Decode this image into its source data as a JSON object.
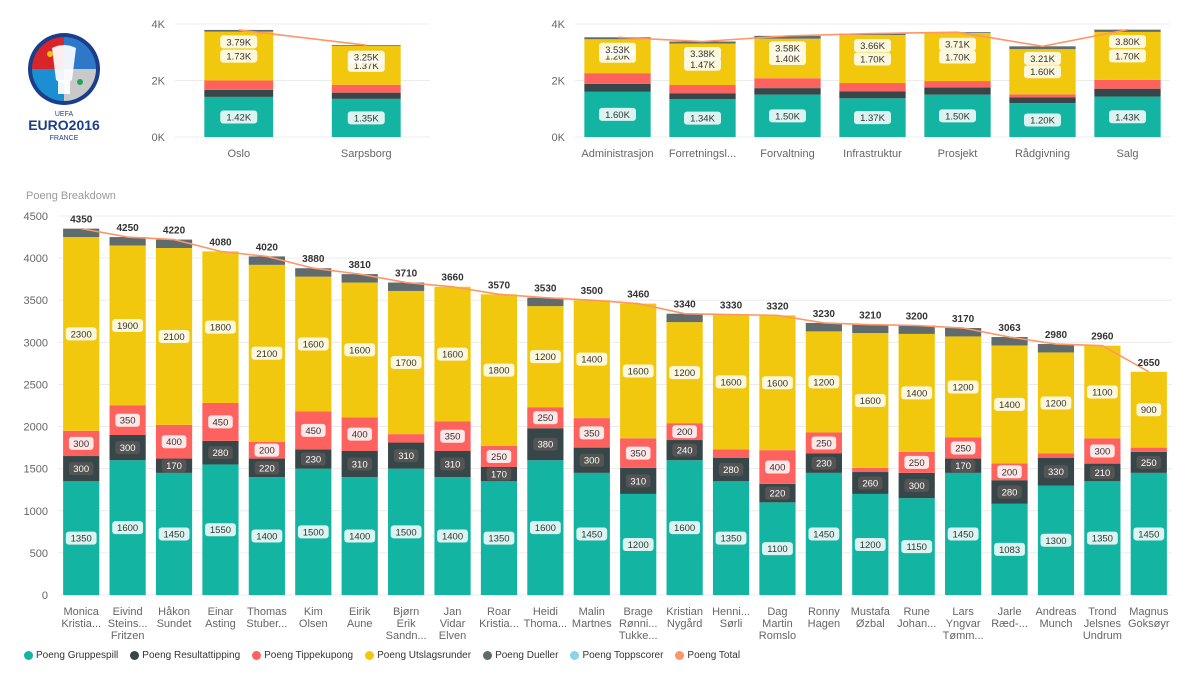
{
  "logo": {
    "text1": "UEFA",
    "text2": "EURO2016",
    "text3": "FRANCE"
  },
  "colors": {
    "Poeng Gruppespill": "#13B5A2",
    "Poeng Resultattipping": "#374649",
    "Poeng Tippekupong": "#FD625E",
    "Poeng Utslagsrunder": "#F2C80F",
    "Poeng Dueller": "#5F6B6D",
    "Poeng Toppscorer": "#8AD4EB",
    "Poeng Total": "#FE9666"
  },
  "legend": {
    "items": [
      {
        "label": "Poeng Gruppespill",
        "color": "#13B5A2"
      },
      {
        "label": "Poeng Resultattipping",
        "color": "#374649"
      },
      {
        "label": "Poeng Tippekupong",
        "color": "#FD625E"
      },
      {
        "label": "Poeng Utslagsrunder",
        "color": "#F2C80F"
      },
      {
        "label": "Poeng Dueller",
        "color": "#5F6B6D"
      },
      {
        "label": "Poeng Toppscorer",
        "color": "#8AD4EB"
      },
      {
        "label": "Poeng Total",
        "color": "#FE9666"
      }
    ]
  },
  "chart_data": [
    {
      "type": "bar",
      "stacked": true,
      "categories": [
        "Oslo",
        "Sarpsborg"
      ],
      "ylim": [
        0,
        4000
      ],
      "yticks": [
        "0K",
        "2K",
        "4K"
      ],
      "series": [
        {
          "name": "Poeng Gruppespill",
          "values": [
            1420,
            1350
          ],
          "labels": [
            "1.42K",
            "1.35K"
          ]
        },
        {
          "name": "Poeng Resultattipping",
          "values": [
            250,
            220
          ],
          "labels": [
            "",
            ""
          ]
        },
        {
          "name": "Poeng Tippekupong",
          "values": [
            330,
            280
          ],
          "labels": [
            "",
            ""
          ]
        },
        {
          "name": "Poeng Utslagsrunder",
          "values": [
            1730,
            1370
          ],
          "labels": [
            "1.73K",
            "1.37K"
          ]
        },
        {
          "name": "Poeng Dueller",
          "values": [
            60,
            30
          ],
          "labels": [
            "",
            ""
          ]
        }
      ],
      "total": {
        "name": "Poeng Total",
        "values": [
          3790,
          3250
        ],
        "labels": [
          "3.79K",
          "3.25K"
        ]
      }
    },
    {
      "type": "bar",
      "stacked": true,
      "categories": [
        "Administrasjon",
        "Forretningsl...",
        "Forvaltning",
        "Infrastruktur",
        "Prosjekt",
        "Rådgivning",
        "Salg"
      ],
      "ylim": [
        0,
        4000
      ],
      "yticks": [
        "0K",
        "2K",
        "4K"
      ],
      "series": [
        {
          "name": "Poeng Gruppespill",
          "values": [
            1600,
            1340,
            1500,
            1370,
            1500,
            1200,
            1430
          ],
          "labels": [
            "1.60K",
            "1.34K",
            "1.50K",
            "1.37K",
            "1.50K",
            "1.20K",
            "1.43K"
          ]
        },
        {
          "name": "Poeng Resultattipping",
          "values": [
            280,
            200,
            230,
            250,
            250,
            200,
            280
          ],
          "labels": [
            "",
            "",
            "",
            "",
            "",
            "",
            ""
          ]
        },
        {
          "name": "Poeng Tippekupong",
          "values": [
            380,
            300,
            350,
            290,
            230,
            110,
            310
          ],
          "labels": [
            "",
            "",
            "",
            "",
            "",
            "",
            ""
          ]
        },
        {
          "name": "Poeng Utslagsrunder",
          "values": [
            1200,
            1470,
            1400,
            1700,
            1700,
            1600,
            1700
          ],
          "labels": [
            "1.20K",
            "1.47K",
            "1.40K",
            "1.70K",
            "1.70K",
            "1.60K",
            "1.70K"
          ]
        },
        {
          "name": "Poeng Dueller",
          "values": [
            70,
            70,
            100,
            50,
            30,
            100,
            80
          ],
          "labels": [
            "",
            "",
            "",
            "",
            "",
            "",
            ""
          ]
        }
      ],
      "total": {
        "name": "Poeng Total",
        "values": [
          3530,
          3380,
          3580,
          3660,
          3710,
          3210,
          3800
        ],
        "labels": [
          "3.53K",
          "3.38K",
          "3.58K",
          "3.66K",
          "3.71K",
          "3.21K",
          "3.80K"
        ]
      }
    },
    {
      "type": "bar",
      "stacked": true,
      "subtitle": "Poeng Breakdown",
      "categories": [
        [
          "Monica",
          "Kristia..."
        ],
        [
          "Eivind",
          "Steins...",
          "Fritzen"
        ],
        [
          "Håkon",
          "Sundet"
        ],
        [
          "Einar",
          "Asting"
        ],
        [
          "Thomas",
          "Stuber..."
        ],
        [
          "Kim",
          "Olsen"
        ],
        [
          "Eirik",
          "Aune"
        ],
        [
          "Bjørn",
          "Erik",
          "Sandn..."
        ],
        [
          "Jan",
          "Vidar",
          "Elven"
        ],
        [
          "Roar",
          "Kristia..."
        ],
        [
          "Heidi",
          "Thoma..."
        ],
        [
          "Malin",
          "Martnes"
        ],
        [
          "Brage",
          "Rønni...",
          "Tukke..."
        ],
        [
          "Kristian",
          "Nygård"
        ],
        [
          "Henni...",
          "Sørli"
        ],
        [
          "Dag",
          "Martin",
          "Romslo"
        ],
        [
          "Ronny",
          "Hagen"
        ],
        [
          "Mustafa",
          "Øzbal"
        ],
        [
          "Rune",
          "Johan..."
        ],
        [
          "Lars",
          "Yngvar",
          "Tømm..."
        ],
        [
          "Jarle",
          "Ræd-..."
        ],
        [
          "Andreas",
          "Munch"
        ],
        [
          "Trond",
          "Jelsnes",
          "Undrum"
        ],
        [
          "Magnus",
          "Goksøyr"
        ]
      ],
      "ylim": [
        0,
        4500
      ],
      "yticks": [
        "0",
        "500",
        "1000",
        "1500",
        "2000",
        "2500",
        "3000",
        "3500",
        "4000",
        "4500"
      ],
      "series": [
        {
          "name": "Poeng Gruppespill",
          "values": [
            1350,
            1600,
            1450,
            1550,
            1400,
            1500,
            1400,
            1500,
            1400,
            1350,
            1600,
            1450,
            1200,
            1600,
            1350,
            1100,
            1450,
            1200,
            1150,
            1450,
            1083,
            1300,
            1350,
            1450
          ],
          "labels": [
            "1350",
            "1600",
            "1450",
            "1550",
            "1400",
            "1500",
            "1400",
            "1500",
            "1400",
            "1350",
            "1600",
            "1450",
            "1200",
            "1600",
            "1350",
            "1100",
            "1450",
            "1200",
            "1150",
            "1450",
            "1083",
            "1300",
            "1350",
            "1450"
          ]
        },
        {
          "name": "Poeng Resultattipping",
          "values": [
            300,
            300,
            170,
            280,
            220,
            230,
            310,
            310,
            310,
            170,
            380,
            300,
            310,
            240,
            280,
            220,
            230,
            260,
            300,
            170,
            280,
            330,
            210,
            250
          ],
          "labels": [
            "300",
            "300",
            "170",
            "280",
            "220",
            "230",
            "310",
            "310",
            "310",
            "170",
            "380",
            "300",
            "310",
            "240",
            "280",
            "220",
            "230",
            "260",
            "300",
            "170",
            "280",
            "330",
            "210",
            "250"
          ]
        },
        {
          "name": "Poeng Tippekupong",
          "values": [
            300,
            350,
            400,
            450,
            200,
            450,
            400,
            100,
            350,
            250,
            250,
            350,
            350,
            200,
            100,
            400,
            250,
            50,
            250,
            250,
            200,
            50,
            300,
            50
          ],
          "labels": [
            "300",
            "350",
            "400",
            "450",
            "200",
            "450",
            "400",
            "",
            "350",
            "250",
            "250",
            "350",
            "350",
            "200",
            "",
            "400",
            "250",
            "",
            "250",
            "250",
            "200",
            "",
            "300",
            ""
          ]
        },
        {
          "name": "Poeng Utslagsrunder",
          "values": [
            2300,
            1900,
            2100,
            1800,
            2100,
            1600,
            1600,
            1700,
            1600,
            1800,
            1200,
            1400,
            1600,
            1200,
            1600,
            1600,
            1200,
            1600,
            1400,
            1200,
            1400,
            1200,
            1100,
            900
          ],
          "labels": [
            "2300",
            "1900",
            "2100",
            "1800",
            "2100",
            "1600",
            "1600",
            "1700",
            "1600",
            "1800",
            "1200",
            "1400",
            "1600",
            "1200",
            "1600",
            "1600",
            "1200",
            "1600",
            "1400",
            "1200",
            "1400",
            "1200",
            "1100",
            "900"
          ]
        },
        {
          "name": "Poeng Dueller",
          "values": [
            100,
            100,
            100,
            0,
            100,
            100,
            100,
            100,
            0,
            0,
            100,
            0,
            0,
            100,
            0,
            0,
            100,
            100,
            100,
            100,
            100,
            100,
            0,
            0
          ],
          "labels": [
            "",
            "",
            "",
            "",
            "",
            "",
            "",
            "",
            "",
            "",
            "",
            "",
            "",
            "",
            "",
            "",
            "",
            "",
            "",
            "",
            "",
            "",
            "",
            ""
          ]
        }
      ],
      "total": {
        "name": "Poeng Total",
        "values": [
          4350,
          4250,
          4220,
          4080,
          4020,
          3880,
          3810,
          3710,
          3660,
          3570,
          3530,
          3500,
          3460,
          3340,
          3330,
          3320,
          3230,
          3210,
          3200,
          3170,
          3063,
          2980,
          2960,
          2650
        ],
        "labels": [
          "4350",
          "4250",
          "4220",
          "4080",
          "4020",
          "3880",
          "3810",
          "3710",
          "3660",
          "3570",
          "3530",
          "3500",
          "3460",
          "3340",
          "3330",
          "3320",
          "3230",
          "3210",
          "3200",
          "3170",
          "3063",
          "2980",
          "2960",
          "2650"
        ]
      }
    }
  ]
}
